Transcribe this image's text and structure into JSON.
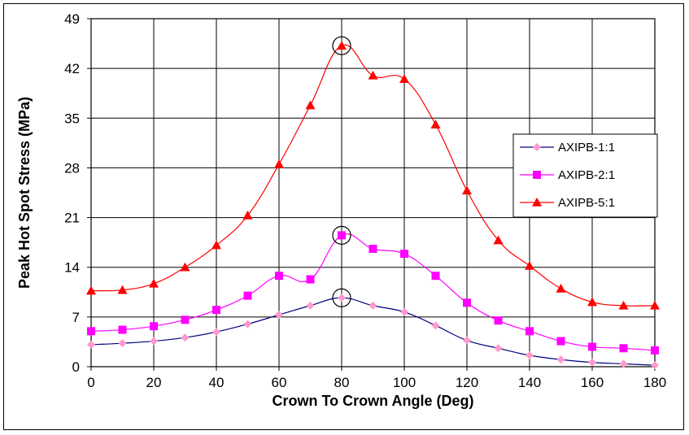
{
  "chart_data": {
    "type": "line",
    "title": "",
    "xlabel": "Crown To Crown Angle (Deg)",
    "ylabel": "Peak Hot Spot Stress (MPa)",
    "xlim": [
      0,
      180
    ],
    "ylim": [
      0,
      49
    ],
    "xticks": [
      0,
      20,
      40,
      60,
      80,
      100,
      120,
      140,
      160,
      180
    ],
    "yticks": [
      0,
      7,
      14,
      21,
      28,
      35,
      42,
      49
    ],
    "grid": true,
    "legend_position": "right",
    "x": [
      0,
      10,
      20,
      30,
      40,
      50,
      60,
      70,
      80,
      90,
      100,
      110,
      120,
      130,
      140,
      150,
      160,
      170,
      180
    ],
    "series": [
      {
        "name": "AXIPB-1:1",
        "line_color": "#000080",
        "marker_color": "#ff99cc",
        "marker": "diamond",
        "values": [
          3.1,
          3.3,
          3.6,
          4.1,
          4.9,
          6.0,
          7.3,
          8.6,
          9.7,
          8.6,
          7.7,
          5.8,
          3.7,
          2.6,
          1.6,
          1.0,
          0.6,
          0.4,
          0.2
        ]
      },
      {
        "name": "AXIPB-2:1",
        "line_color": "#ff00ff",
        "marker_color": "#ff00ff",
        "marker": "square",
        "values": [
          5.0,
          5.2,
          5.7,
          6.6,
          8.0,
          10.0,
          12.8,
          12.3,
          18.5,
          16.6,
          15.9,
          12.8,
          9.0,
          6.5,
          5.0,
          3.6,
          2.8,
          2.6,
          2.3
        ]
      },
      {
        "name": "AXIPB-5:1",
        "line_color": "#ff0000",
        "marker_color": "#ff0000",
        "marker": "triangle",
        "values": [
          10.7,
          10.8,
          11.7,
          14.0,
          17.1,
          21.3,
          28.5,
          36.8,
          45.2,
          41.0,
          40.5,
          34.1,
          24.8,
          17.8,
          14.2,
          11.0,
          9.1,
          8.6,
          8.6
        ]
      }
    ],
    "highlight_circles": [
      {
        "series": "AXIPB-1:1",
        "x": 80
      },
      {
        "series": "AXIPB-2:1",
        "x": 80
      },
      {
        "series": "AXIPB-5:1",
        "x": 80
      }
    ]
  }
}
